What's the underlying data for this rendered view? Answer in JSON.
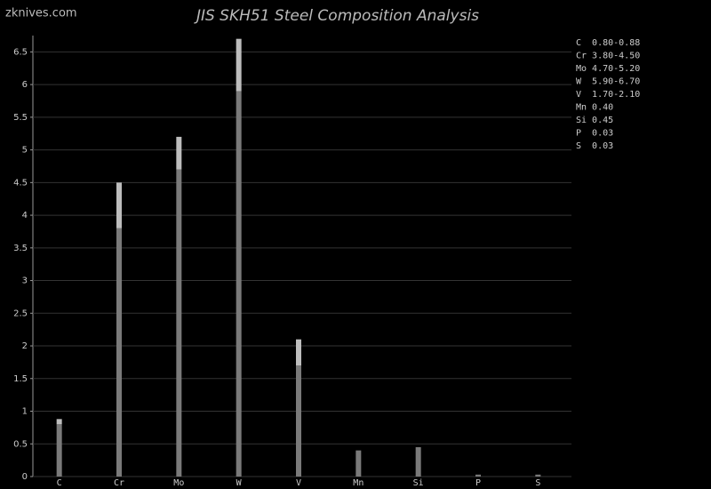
{
  "chart_data": {
    "type": "bar",
    "stacked": true,
    "title": "JIS SKH51 Steel Composition Analysis",
    "watermark": "zknives.com",
    "categories": [
      "C",
      "Cr",
      "Mo",
      "W",
      "V",
      "Mn",
      "Si",
      "P",
      "S"
    ],
    "series": [
      {
        "color": "#7a7a7a",
        "values": [
          0.8,
          3.8,
          4.7,
          5.9,
          1.7,
          0.4,
          0.45,
          0.03,
          0.03
        ]
      },
      {
        "color": "#bdbdbd",
        "values": [
          0.08,
          0.7,
          0.5,
          0.8,
          0.4,
          0,
          0,
          0,
          0
        ]
      }
    ],
    "legend": [
      "C  0.80-0.88",
      "Cr 3.80-4.50",
      "Mo 4.70-5.20",
      "W  5.90-6.70",
      "V  1.70-2.10",
      "Mn 0.40",
      "Si 0.45",
      "P  0.03",
      "S  0.03"
    ],
    "ylim": [
      0,
      6.75
    ],
    "yticks": [
      0,
      0.5,
      1,
      1.5,
      2,
      2.5,
      3,
      3.5,
      4,
      4.5,
      5,
      5.5,
      6,
      6.5
    ],
    "grid": true
  }
}
